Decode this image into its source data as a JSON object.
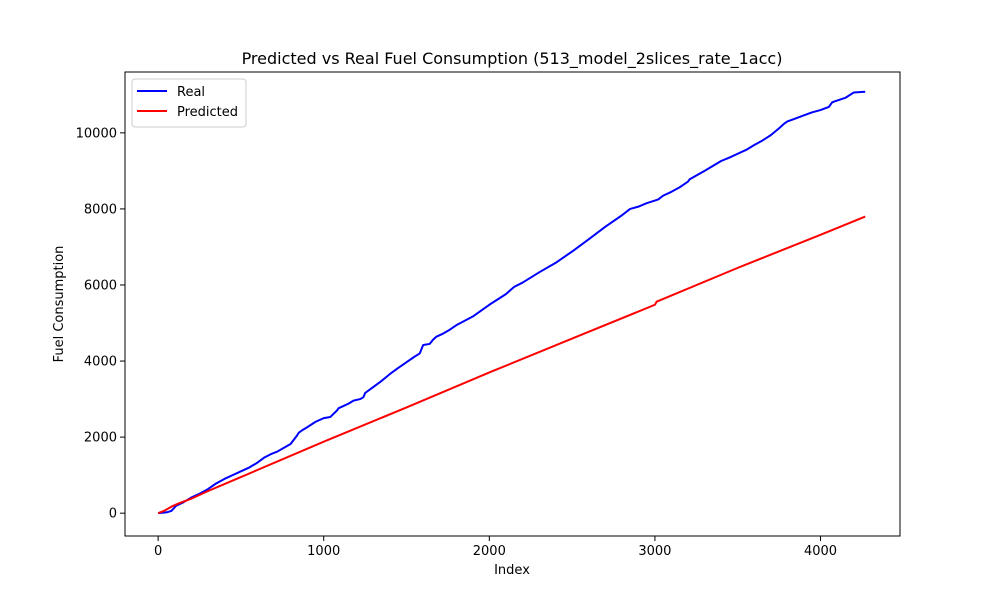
{
  "chart_data": {
    "type": "line",
    "title": "Predicted vs Real Fuel Consumption (513_model_2slices_rate_1acc)",
    "xlabel": "Index",
    "ylabel": "Fuel Consumption",
    "xlim": [
      -200,
      4480
    ],
    "ylim": [
      -600,
      11600
    ],
    "x_ticks": [
      0,
      1000,
      2000,
      3000,
      4000
    ],
    "y_ticks": [
      0,
      2000,
      4000,
      6000,
      8000,
      10000
    ],
    "x_tick_labels": [
      "0",
      "1000",
      "2000",
      "3000",
      "4000"
    ],
    "y_tick_labels": [
      "0",
      "2000",
      "4000",
      "6000",
      "8000",
      "10000"
    ],
    "grid": false,
    "legend_position": "upper-left",
    "series": [
      {
        "name": "Real",
        "color": "#0000ff",
        "x": [
          0,
          50,
          80,
          110,
          150,
          200,
          250,
          300,
          350,
          400,
          450,
          500,
          550,
          600,
          640,
          680,
          720,
          760,
          800,
          840,
          850,
          860,
          870,
          900,
          950,
          1000,
          1040,
          1080,
          1090,
          1120,
          1150,
          1180,
          1220,
          1240,
          1250,
          1300,
          1350,
          1400,
          1450,
          1500,
          1550,
          1580,
          1600,
          1610,
          1640,
          1660,
          1680,
          1720,
          1760,
          1800,
          1900,
          2000,
          2100,
          2150,
          2200,
          2300,
          2400,
          2500,
          2600,
          2700,
          2800,
          2850,
          2900,
          2950,
          3000,
          3020,
          3050,
          3100,
          3150,
          3200,
          3210,
          3300,
          3400,
          3450,
          3500,
          3550,
          3600,
          3650,
          3700,
          3750,
          3780,
          3800,
          3850,
          3900,
          3950,
          4000,
          4050,
          4070,
          4080,
          4150,
          4200,
          4270
        ],
        "y": [
          0,
          20,
          60,
          200,
          280,
          410,
          510,
          630,
          780,
          900,
          1000,
          1100,
          1200,
          1330,
          1460,
          1550,
          1620,
          1720,
          1820,
          2050,
          2120,
          2150,
          2180,
          2260,
          2400,
          2500,
          2530,
          2700,
          2760,
          2820,
          2880,
          2960,
          3000,
          3050,
          3160,
          3320,
          3480,
          3660,
          3820,
          3970,
          4120,
          4200,
          4420,
          4430,
          4450,
          4560,
          4640,
          4720,
          4820,
          4940,
          5170,
          5480,
          5760,
          5950,
          6060,
          6330,
          6580,
          6880,
          7200,
          7530,
          7830,
          8000,
          8060,
          8150,
          8220,
          8250,
          8350,
          8450,
          8570,
          8720,
          8780,
          9000,
          9260,
          9350,
          9450,
          9550,
          9680,
          9800,
          9940,
          10120,
          10240,
          10300,
          10380,
          10460,
          10540,
          10600,
          10680,
          10800,
          10820,
          10920,
          11060,
          11080
        ]
      },
      {
        "name": "Predicted",
        "color": "#ff0000",
        "x": [
          0,
          40,
          80,
          120,
          200,
          300,
          500,
          1000,
          1500,
          2000,
          2500,
          3000,
          3010,
          3500,
          4000,
          4270
        ],
        "y": [
          0,
          70,
          170,
          250,
          380,
          580,
          950,
          1880,
          2780,
          3700,
          4590,
          5480,
          5560,
          6450,
          7320,
          7800
        ]
      }
    ]
  }
}
